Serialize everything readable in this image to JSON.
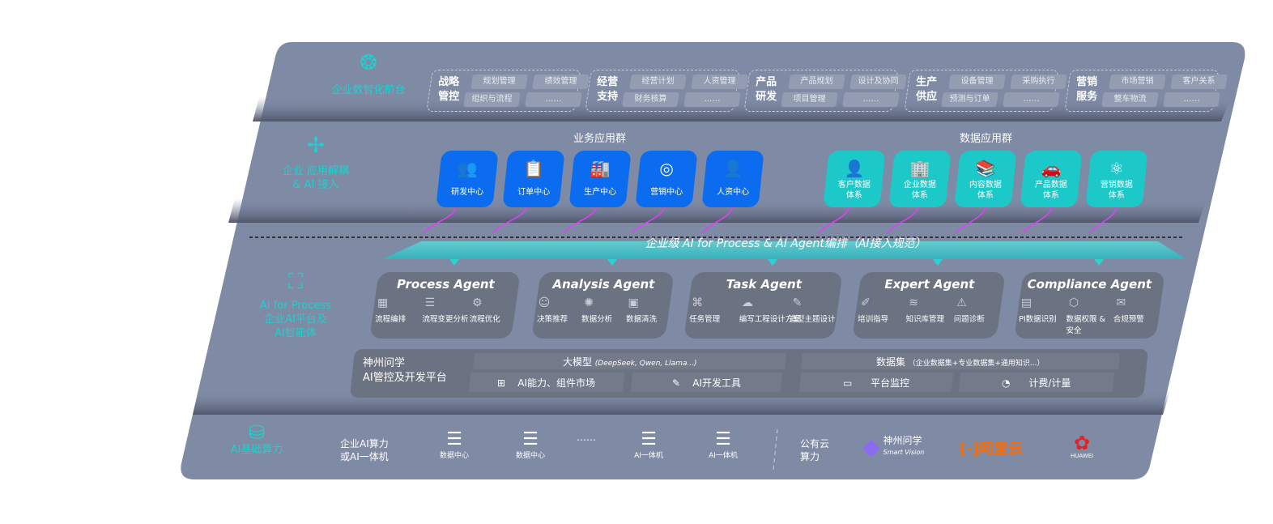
{
  "layers": {
    "frontend": {
      "label": "企业数智化前台",
      "icon": "brain-icon",
      "groups": [
        {
          "title": "战略\n管控",
          "items": [
            "规划管理",
            "绩效管理",
            "组织与流程",
            "……"
          ]
        },
        {
          "title": "经营\n支持",
          "items": [
            "经营计划",
            "人资管理",
            "财务核算",
            "……"
          ]
        },
        {
          "title": "产品\n研发",
          "items": [
            "产品规划",
            "设计及协同",
            "项目管理",
            "……"
          ]
        },
        {
          "title": "生产\n供应",
          "items": [
            "设备管理",
            "采购执行",
            "预测与订单",
            "……"
          ]
        },
        {
          "title": "营销\n服务",
          "items": [
            "市场营销",
            "客户关系",
            "整车物流",
            "……"
          ]
        }
      ]
    },
    "apps": {
      "label": "企业 应用解耦\n& AI 接入",
      "icon": "network-node-icon",
      "business_title": "业务应用群",
      "data_title": "数据应用群",
      "business": [
        {
          "label": "研发中心",
          "icon": "team-icon",
          "glyph": "👥"
        },
        {
          "label": "订单中心",
          "icon": "clipboard-icon",
          "glyph": "📋"
        },
        {
          "label": "生产中心",
          "icon": "factory-icon",
          "glyph": "🏭"
        },
        {
          "label": "营销中心",
          "icon": "target-icon",
          "glyph": "◎"
        },
        {
          "label": "人资中心",
          "icon": "person-icon",
          "glyph": "👤"
        }
      ],
      "data": [
        {
          "label": "客户数据\n体系",
          "icon": "user-icon",
          "glyph": "👤"
        },
        {
          "label": "企业数据\n体系",
          "icon": "building-icon",
          "glyph": "🏢"
        },
        {
          "label": "内容数据\n体系",
          "icon": "books-icon",
          "glyph": "📚"
        },
        {
          "label": "产品数据\n体系",
          "icon": "car-icon",
          "glyph": "🚗"
        },
        {
          "label": "营销数据\n体系",
          "icon": "atom-icon",
          "glyph": "⚛"
        }
      ]
    },
    "ai": {
      "label": "AI for Process\n企业AI平台及\nAI智能体",
      "icon": "face-scan-icon",
      "banner": "企业级 AI for Process & AI Agent编排（AI接入规范）",
      "agents": [
        {
          "title": "Process Agent",
          "items": [
            {
              "label": "流程编排",
              "glyph": "▦"
            },
            {
              "label": "流程变更分析",
              "glyph": "☰"
            },
            {
              "label": "流程优化",
              "glyph": "⚙"
            }
          ]
        },
        {
          "title": "Analysis Agent",
          "items": [
            {
              "label": "决策推荐",
              "glyph": "☺"
            },
            {
              "label": "数据分析",
              "glyph": "✺"
            },
            {
              "label": "数据清洗",
              "glyph": "▣"
            }
          ]
        },
        {
          "title": "Task Agent",
          "items": [
            {
              "label": "任务管理",
              "glyph": "⌘"
            },
            {
              "label": "编写工程设计方案",
              "glyph": "☁"
            },
            {
              "label": "造型主题设计",
              "glyph": "✎"
            }
          ]
        },
        {
          "title": "Expert Agent",
          "items": [
            {
              "label": "培训指导",
              "glyph": "✐"
            },
            {
              "label": "知识库管理",
              "glyph": "≋"
            },
            {
              "label": "问题诊断",
              "glyph": "⚠"
            }
          ]
        },
        {
          "title": "Compliance Agent",
          "items": [
            {
              "label": "PI数据识别",
              "glyph": "▤"
            },
            {
              "label": "数据权限 &\n安全",
              "glyph": "⬡"
            },
            {
              "label": "合规预警",
              "glyph": "✉"
            }
          ]
        }
      ],
      "platform": {
        "name": "神州问学\nAI管控及开发平台",
        "llm": "大模型",
        "llm_note": "(DeepSeek, Qwen, Llama...)",
        "dataset": "数据集",
        "dataset_note": "（企业数据集+专业数据集+通用知识...）",
        "market": "AI能力、组件市场",
        "devtools": "AI开发工具",
        "monitor": "平台监控",
        "billing": "计费/计量"
      }
    },
    "infra": {
      "label": "AI基础算力",
      "icon": "database-icon",
      "private_label": "企业AI算力\n或AI一体机",
      "servers": [
        "数据中心",
        "数据中心",
        "AI一体机",
        "AI一体机"
      ],
      "ellipsis": "……",
      "public_label": "公有云\n算力",
      "vendors": {
        "shenzhou": "神州问学",
        "shenzhou_sub": "Smart Vision",
        "aliyun": "阿里云",
        "huawei": "HUAWEI"
      }
    }
  },
  "colors": {
    "panel": "#7f8aa5",
    "teal": "#1ed0d0",
    "blue": "#0b6cf0",
    "connector": "#e040fb",
    "aliyun": "#ff6a00",
    "huawei": "#e0242a"
  }
}
